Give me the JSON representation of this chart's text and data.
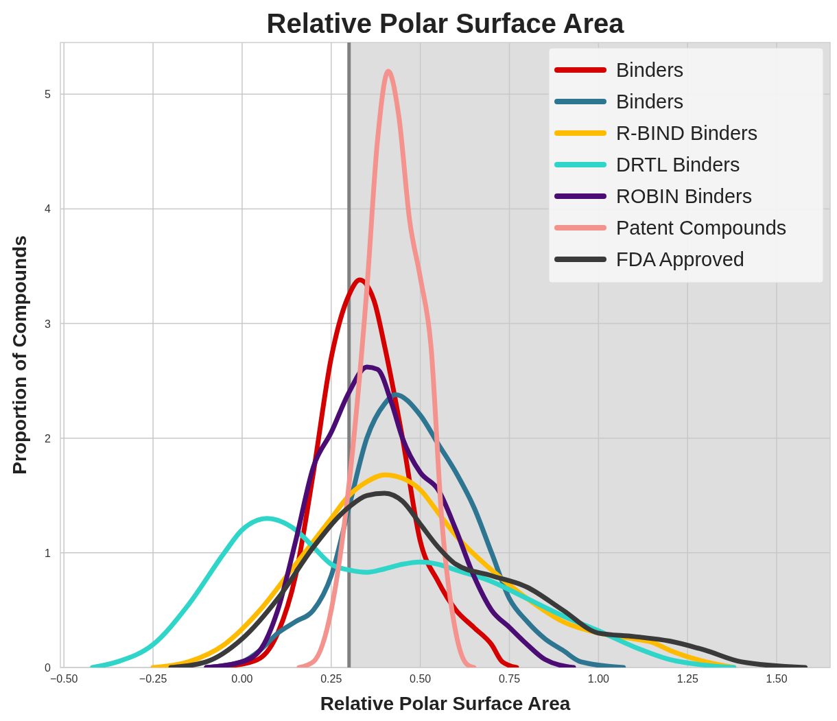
{
  "chart_data": {
    "type": "line",
    "title": "Relative Polar Surface Area",
    "xlabel": "Relative Polar Surface Area",
    "ylabel": "Proportion of Compounds",
    "xlim": [
      -0.51,
      1.65
    ],
    "ylim": [
      0,
      5.45
    ],
    "xticks": [
      {
        "value": -0.5,
        "label": "−0.50"
      },
      {
        "value": -0.25,
        "label": "−0.25"
      },
      {
        "value": 0,
        "label": "0.00"
      },
      {
        "value": 0.25,
        "label": "0.25"
      },
      {
        "value": 0.5,
        "label": "0.50"
      },
      {
        "value": 0.75,
        "label": "0.75"
      },
      {
        "value": 1,
        "label": "1.00"
      },
      {
        "value": 1.25,
        "label": "1.25"
      },
      {
        "value": 1.5,
        "label": "1.50"
      }
    ],
    "yticks": [
      0,
      1,
      2,
      3,
      4,
      5
    ],
    "grid": true,
    "legend": "top right",
    "line_style": "solid",
    "bands": [
      {
        "axis": "x",
        "from": 0.3,
        "to": 1.65,
        "color": "#dedede"
      }
    ],
    "ref_lines": [
      {
        "axis": "x",
        "value": 0.3,
        "color": "#808080"
      }
    ],
    "series": [
      {
        "name": "Binders",
        "color": "#d40000",
        "x": [
          -0.1,
          0,
          0.05,
          0.1,
          0.15,
          0.2,
          0.25,
          0.3,
          0.33,
          0.37,
          0.4,
          0.45,
          0.5,
          0.55,
          0.6,
          0.65,
          0.7,
          0.73,
          0.77
        ],
        "values": [
          0,
          0.03,
          0.08,
          0.3,
          0.8,
          1.7,
          2.7,
          3.25,
          3.38,
          3.2,
          2.8,
          2,
          1.1,
          0.75,
          0.5,
          0.35,
          0.2,
          0.05,
          0
        ]
      },
      {
        "name": "Binders",
        "color": "#2e7591",
        "x": [
          -0.1,
          0,
          0.05,
          0.1,
          0.15,
          0.2,
          0.25,
          0.3,
          0.35,
          0.4,
          0.43,
          0.5,
          0.55,
          0.6,
          0.65,
          0.7,
          0.75,
          0.8,
          0.85,
          0.9,
          0.95,
          1.07
        ],
        "values": [
          0,
          0.05,
          0.15,
          0.3,
          0.4,
          0.5,
          0.8,
          1.4,
          2,
          2.3,
          2.38,
          2.2,
          1.95,
          1.7,
          1.4,
          1,
          0.6,
          0.4,
          0.25,
          0.15,
          0.05,
          0
        ]
      },
      {
        "name": "R-BIND Binders",
        "color": "#ffbb00",
        "x": [
          -0.25,
          -0.15,
          -0.05,
          0.05,
          0.15,
          0.25,
          0.3,
          0.35,
          0.4,
          0.45,
          0.5,
          0.55,
          0.6,
          0.7,
          0.8,
          0.9,
          1,
          1.1,
          1.15,
          1.2,
          1.3,
          1.38
        ],
        "values": [
          0,
          0.05,
          0.2,
          0.5,
          0.9,
          1.3,
          1.5,
          1.62,
          1.68,
          1.65,
          1.55,
          1.35,
          1.15,
          0.85,
          0.6,
          0.4,
          0.3,
          0.25,
          0.22,
          0.15,
          0.05,
          0
        ]
      },
      {
        "name": "DRTL Binders",
        "color": "#2fd5c9",
        "x": [
          -0.42,
          -0.35,
          -0.25,
          -0.15,
          -0.05,
          0,
          0.07,
          0.15,
          0.2,
          0.25,
          0.3,
          0.35,
          0.4,
          0.45,
          0.5,
          0.55,
          0.6,
          0.7,
          0.8,
          0.9,
          1,
          1.1,
          1.2,
          1.3,
          1.38
        ],
        "values": [
          0,
          0.05,
          0.2,
          0.55,
          1,
          1.2,
          1.3,
          1.2,
          1.05,
          0.9,
          0.85,
          0.83,
          0.86,
          0.9,
          0.92,
          0.9,
          0.85,
          0.75,
          0.6,
          0.45,
          0.32,
          0.18,
          0.07,
          0.02,
          0
        ]
      },
      {
        "name": "ROBIN Binders",
        "color": "#4b0c73",
        "x": [
          -0.1,
          0,
          0.05,
          0.1,
          0.15,
          0.2,
          0.25,
          0.3,
          0.35,
          0.38,
          0.42,
          0.45,
          0.5,
          0.55,
          0.6,
          0.65,
          0.7,
          0.75,
          0.8,
          0.85,
          0.93
        ],
        "values": [
          0,
          0.05,
          0.15,
          0.5,
          1.1,
          1.75,
          2.05,
          2.4,
          2.62,
          2.6,
          2.3,
          2,
          1.7,
          1.55,
          1.2,
          0.8,
          0.5,
          0.35,
          0.2,
          0.07,
          0
        ]
      },
      {
        "name": "Patent Compounds",
        "color": "#f4938e",
        "x": [
          0.16,
          0.2,
          0.25,
          0.3,
          0.35,
          0.38,
          0.41,
          0.44,
          0.47,
          0.5,
          0.53,
          0.56,
          0.6,
          0.63,
          0.65
        ],
        "values": [
          0,
          0.05,
          0.5,
          1.6,
          3.3,
          4.6,
          5.2,
          4.8,
          3.9,
          3.4,
          2.8,
          1.3,
          0.3,
          0.03,
          0
        ]
      },
      {
        "name": "FDA Approved",
        "color": "#3a3a3a",
        "x": [
          -0.2,
          -0.1,
          0,
          0.1,
          0.2,
          0.3,
          0.35,
          0.4,
          0.45,
          0.5,
          0.55,
          0.6,
          0.7,
          0.8,
          0.9,
          1,
          1.1,
          1.2,
          1.3,
          1.4,
          1.58
        ],
        "values": [
          0,
          0.05,
          0.25,
          0.6,
          1.05,
          1.4,
          1.5,
          1.52,
          1.45,
          1.25,
          1.05,
          0.9,
          0.8,
          0.7,
          0.5,
          0.3,
          0.27,
          0.23,
          0.15,
          0.05,
          0
        ]
      }
    ]
  }
}
